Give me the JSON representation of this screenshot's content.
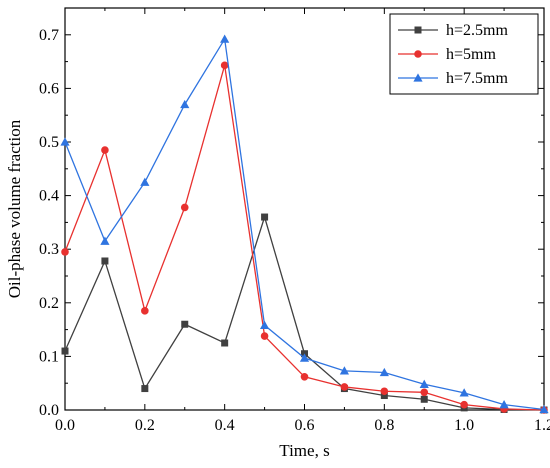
{
  "chart_data": {
    "type": "line",
    "title": "",
    "xlabel": "Time, s",
    "ylabel": "Oil-phase volume fraction",
    "xlim": [
      0.0,
      1.2
    ],
    "ylim": [
      0.0,
      0.75
    ],
    "x_ticks": [
      0.0,
      0.2,
      0.4,
      0.6,
      0.8,
      1.0,
      1.2
    ],
    "x_tick_labels": [
      "0.0",
      "0.2",
      "0.4",
      "0.6",
      "0.8",
      "1.0",
      "1.2"
    ],
    "y_ticks": [
      0.0,
      0.1,
      0.2,
      0.3,
      0.4,
      0.5,
      0.6,
      0.7
    ],
    "y_tick_labels": [
      "0.0",
      "0.1",
      "0.2",
      "0.3",
      "0.4",
      "0.5",
      "0.6",
      "0.7"
    ],
    "grid": false,
    "legend_position": "top-right",
    "series": [
      {
        "name": "h=2.5mm",
        "color": "#404040",
        "marker": "square",
        "x": [
          0.0,
          0.1,
          0.2,
          0.3,
          0.4,
          0.5,
          0.6,
          0.7,
          0.8,
          0.9,
          1.0,
          1.1,
          1.2
        ],
        "y": [
          0.11,
          0.278,
          0.04,
          0.16,
          0.125,
          0.36,
          0.105,
          0.04,
          0.027,
          0.02,
          0.004,
          0.001,
          0.0
        ]
      },
      {
        "name": "h=5mm",
        "color": "#e8312f",
        "marker": "circle",
        "x": [
          0.0,
          0.1,
          0.2,
          0.3,
          0.4,
          0.5,
          0.6,
          0.7,
          0.8,
          0.9,
          1.0,
          1.1,
          1.2
        ],
        "y": [
          0.295,
          0.485,
          0.185,
          0.378,
          0.643,
          0.138,
          0.062,
          0.043,
          0.035,
          0.033,
          0.01,
          0.002,
          0.0
        ]
      },
      {
        "name": "h=7.5mm",
        "color": "#2f74e0",
        "marker": "triangle",
        "x": [
          0.0,
          0.1,
          0.2,
          0.3,
          0.4,
          0.5,
          0.6,
          0.7,
          0.8,
          0.9,
          1.0,
          1.1,
          1.2
        ],
        "y": [
          0.5,
          0.315,
          0.425,
          0.57,
          0.692,
          0.158,
          0.097,
          0.073,
          0.07,
          0.048,
          0.032,
          0.01,
          0.001
        ]
      }
    ]
  }
}
